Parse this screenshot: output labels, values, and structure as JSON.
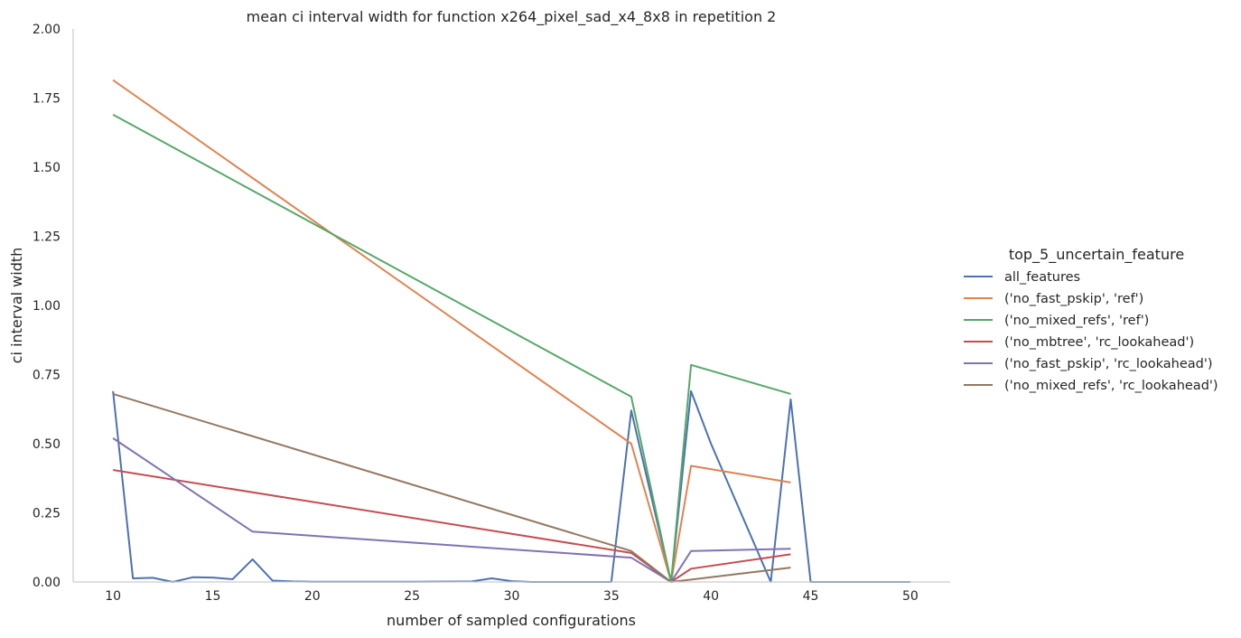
{
  "chart_data": {
    "type": "line",
    "title": "mean ci interval width for function x264_pixel_sad_x4_8x8 in repetition 2",
    "xlabel": "number of sampled configurations",
    "ylabel": "ci interval width",
    "xlim": [
      8,
      52
    ],
    "ylim": [
      0,
      2.0
    ],
    "xticks": [
      10,
      15,
      20,
      25,
      30,
      35,
      40,
      45,
      50
    ],
    "yticks": [
      0.0,
      0.25,
      0.5,
      0.75,
      1.0,
      1.25,
      1.5,
      1.75,
      2.0
    ],
    "ytick_labels": [
      "0.00",
      "0.25",
      "0.50",
      "0.75",
      "1.00",
      "1.25",
      "1.50",
      "1.75",
      "2.00"
    ],
    "grid": false,
    "legend": {
      "title": "top_5_uncertain_feature",
      "placement": "right"
    },
    "series": [
      {
        "name": "all_features",
        "color": "#4c72b0",
        "points": [
          [
            10,
            0.69
          ],
          [
            11,
            0.013
          ],
          [
            12,
            0.015
          ],
          [
            13,
            0.0
          ],
          [
            14,
            0.017
          ],
          [
            15,
            0.016
          ],
          [
            16,
            0.01
          ],
          [
            17,
            0.082
          ],
          [
            18,
            0.005
          ],
          [
            19,
            0.002
          ],
          [
            20,
            0.001
          ],
          [
            25,
            0.001
          ],
          [
            28,
            0.002
          ],
          [
            29,
            0.013
          ],
          [
            30,
            0.003
          ],
          [
            31,
            0.0
          ],
          [
            35,
            0.0
          ],
          [
            36,
            0.62
          ],
          [
            38,
            0.0
          ],
          [
            39,
            0.69
          ],
          [
            40,
            0.5
          ],
          [
            43,
            0.0
          ],
          [
            44,
            0.66
          ],
          [
            45,
            0.0
          ],
          [
            46,
            0.0
          ],
          [
            50,
            0.0
          ]
        ]
      },
      {
        "name": "('no_fast_pskip', 'ref')",
        "color": "#dd8452",
        "points": [
          [
            10,
            1.815
          ],
          [
            36,
            0.5
          ],
          [
            38,
            0.0
          ],
          [
            39,
            0.42
          ],
          [
            44,
            0.36
          ]
        ]
      },
      {
        "name": "('no_mixed_refs', 'ref')",
        "color": "#55a868",
        "points": [
          [
            10,
            1.69
          ],
          [
            36,
            0.67
          ],
          [
            38,
            0.0
          ],
          [
            39,
            0.785
          ],
          [
            44,
            0.68
          ]
        ]
      },
      {
        "name": "('no_mbtree', 'rc_lookahead')",
        "color": "#c44e52",
        "points": [
          [
            10,
            0.405
          ],
          [
            36,
            0.105
          ],
          [
            38,
            0.0
          ],
          [
            39,
            0.048
          ],
          [
            44,
            0.1
          ]
        ]
      },
      {
        "name": "('no_fast_pskip', 'rc_lookahead')",
        "color": "#8172b3",
        "points": [
          [
            10,
            0.52
          ],
          [
            17,
            0.182
          ],
          [
            36,
            0.088
          ],
          [
            38,
            0.0
          ],
          [
            39,
            0.112
          ],
          [
            44,
            0.12
          ]
        ]
      },
      {
        "name": "('no_mixed_refs', 'rc_lookahead')",
        "color": "#937860",
        "points": [
          [
            10,
            0.68
          ],
          [
            36,
            0.112
          ],
          [
            38,
            0.0
          ],
          [
            44,
            0.052
          ]
        ]
      }
    ]
  }
}
